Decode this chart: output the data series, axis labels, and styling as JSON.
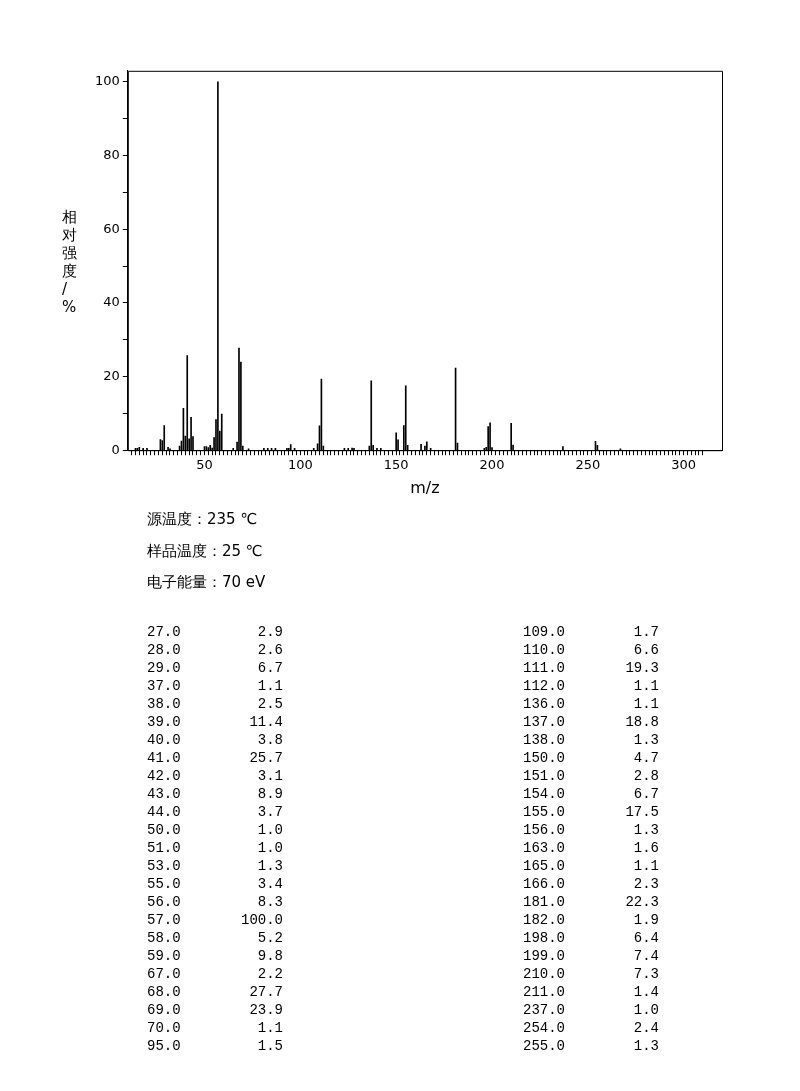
{
  "chart_data": [
    {
      "type": "bar",
      "xlabel": "m/z",
      "ylabel": "相对强度/%",
      "x": [
        14,
        15,
        16,
        18,
        20,
        26,
        27,
        28,
        29,
        31,
        32,
        37,
        38,
        39,
        40,
        41,
        42,
        43,
        44,
        50,
        51,
        52,
        53,
        54,
        55,
        56,
        57,
        58,
        59,
        65,
        67,
        68,
        69,
        70,
        73,
        81,
        83,
        85,
        87,
        93,
        94,
        95,
        97,
        107,
        109,
        110,
        111,
        112,
        123,
        125,
        127,
        128,
        136,
        137,
        138,
        140,
        142,
        150,
        151,
        154,
        155,
        156,
        163,
        165,
        166,
        168,
        181,
        182,
        196,
        197,
        198,
        199,
        200,
        210,
        211,
        237,
        254,
        255,
        267
      ],
      "values": [
        0.5,
        0.5,
        0.8,
        0.5,
        0.5,
        null,
        2.9,
        2.6,
        6.7,
        0.8,
        0.4,
        1.1,
        2.5,
        11.4,
        3.8,
        25.7,
        3.1,
        8.9,
        3.7,
        1.0,
        1.0,
        0.7,
        1.3,
        0.6,
        3.4,
        8.3,
        100,
        5.2,
        9.8,
        0.5,
        2.2,
        27.7,
        23.9,
        1.1,
        0.4,
        0.5,
        0.5,
        0.5,
        0.5,
        0.5,
        0.5,
        1.5,
        0.5,
        0.5,
        1.7,
        6.6,
        19.3,
        1.1,
        0.5,
        0.5,
        0.6,
        0.5,
        1.1,
        18.8,
        1.3,
        0.5,
        0.5,
        4.7,
        2.8,
        6.7,
        17.5,
        1.3,
        1.6,
        1.1,
        2.3,
        0.5,
        22.3,
        1.9,
        0.5,
        0.8,
        6.4,
        7.4,
        0.7,
        7.3,
        1.4,
        1.0,
        2.4,
        1.3,
        0.4
      ],
      "color": "#000000",
      "xlim": [
        10,
        320
      ],
      "xticks": [
        {
          "value": 12,
          "label": null
        },
        {
          "value": 14,
          "label": null
        },
        {
          "value": 16,
          "label": null
        },
        {
          "value": 18,
          "label": null
        },
        {
          "value": 20,
          "label": null
        },
        {
          "value": 22,
          "label": null
        },
        {
          "value": 24,
          "label": null
        },
        {
          "value": 26,
          "label": null
        },
        {
          "value": 28,
          "label": null
        },
        {
          "value": 30,
          "label": null
        },
        {
          "value": 32,
          "label": null
        },
        {
          "value": 34,
          "label": null
        },
        {
          "value": 36,
          "label": null
        },
        {
          "value": 38,
          "label": null
        },
        {
          "value": 40,
          "label": null
        },
        {
          "value": 42,
          "label": null
        },
        {
          "value": 44,
          "label": null
        },
        {
          "value": 46,
          "label": null
        },
        {
          "value": 48,
          "label": null
        },
        50,
        {
          "value": 52,
          "label": null
        },
        {
          "value": 54,
          "label": null
        },
        {
          "value": 56,
          "label": null
        },
        {
          "value": 58,
          "label": null
        },
        {
          "value": 60,
          "label": null
        },
        {
          "value": 62,
          "label": null
        },
        {
          "value": 64,
          "label": null
        },
        {
          "value": 66,
          "label": null
        },
        {
          "value": 68,
          "label": null
        },
        {
          "value": 70,
          "label": null
        },
        {
          "value": 72,
          "label": null
        },
        {
          "value": 74,
          "label": null
        },
        {
          "value": 76,
          "label": null
        },
        {
          "value": 78,
          "label": null
        },
        {
          "value": 80,
          "label": null
        },
        {
          "value": 82,
          "label": null
        },
        {
          "value": 84,
          "label": null
        },
        {
          "value": 86,
          "label": null
        },
        {
          "value": 88,
          "label": null
        },
        {
          "value": 90,
          "label": null
        },
        {
          "value": 92,
          "label": null
        },
        {
          "value": 94,
          "label": null
        },
        {
          "value": 96,
          "label": null
        },
        {
          "value": 98,
          "label": null
        },
        100,
        {
          "value": 102,
          "label": null
        },
        {
          "value": 104,
          "label": null
        },
        {
          "value": 106,
          "label": null
        },
        {
          "value": 108,
          "label": null
        },
        {
          "value": 110,
          "label": null
        },
        {
          "value": 112,
          "label": null
        },
        {
          "value": 114,
          "label": null
        },
        {
          "value": 116,
          "label": null
        },
        {
          "value": 118,
          "label": null
        },
        {
          "value": 120,
          "label": null
        },
        {
          "value": 122,
          "label": null
        },
        {
          "value": 124,
          "label": null
        },
        {
          "value": 126,
          "label": null
        },
        {
          "value": 128,
          "label": null
        },
        {
          "value": 130,
          "label": null
        },
        {
          "value": 132,
          "label": null
        },
        {
          "value": 134,
          "label": null
        },
        {
          "value": 136,
          "label": null
        },
        {
          "value": 138,
          "label": null
        },
        {
          "value": 140,
          "label": null
        },
        {
          "value": 142,
          "label": null
        },
        {
          "value": 144,
          "label": null
        },
        {
          "value": 146,
          "label": null
        },
        {
          "value": 148,
          "label": null
        },
        150,
        {
          "value": 152,
          "label": null
        },
        {
          "value": 154,
          "label": null
        },
        {
          "value": 156,
          "label": null
        },
        {
          "value": 158,
          "label": null
        },
        {
          "value": 160,
          "label": null
        },
        {
          "value": 162,
          "label": null
        },
        {
          "value": 164,
          "label": null
        },
        {
          "value": 166,
          "label": null
        },
        {
          "value": 168,
          "label": null
        },
        {
          "value": 170,
          "label": null
        },
        {
          "value": 172,
          "label": null
        },
        {
          "value": 174,
          "label": null
        },
        {
          "value": 176,
          "label": null
        },
        {
          "value": 178,
          "label": null
        },
        {
          "value": 180,
          "label": null
        },
        {
          "value": 182,
          "label": null
        },
        {
          "value": 184,
          "label": null
        },
        {
          "value": 186,
          "label": null
        },
        {
          "value": 188,
          "label": null
        },
        {
          "value": 190,
          "label": null
        },
        {
          "value": 192,
          "label": null
        },
        {
          "value": 194,
          "label": null
        },
        {
          "value": 196,
          "label": null
        },
        {
          "value": 198,
          "label": null
        },
        200,
        {
          "value": 202,
          "label": null
        },
        {
          "value": 204,
          "label": null
        },
        {
          "value": 206,
          "label": null
        },
        {
          "value": 208,
          "label": null
        },
        {
          "value": 210,
          "label": null
        },
        {
          "value": 212,
          "label": null
        },
        {
          "value": 214,
          "label": null
        },
        {
          "value": 216,
          "label": null
        },
        {
          "value": 218,
          "label": null
        },
        {
          "value": 220,
          "label": null
        },
        {
          "value": 222,
          "label": null
        },
        {
          "value": 224,
          "label": null
        },
        {
          "value": 226,
          "label": null
        },
        {
          "value": 228,
          "label": null
        },
        {
          "value": 230,
          "label": null
        },
        {
          "value": 232,
          "label": null
        },
        {
          "value": 234,
          "label": null
        },
        {
          "value": 236,
          "label": null
        },
        {
          "value": 238,
          "label": null
        },
        {
          "value": 240,
          "label": null
        },
        {
          "value": 242,
          "label": null
        },
        {
          "value": 244,
          "label": null
        },
        {
          "value": 246,
          "label": null
        },
        {
          "value": 248,
          "label": null
        },
        250,
        {
          "value": 252,
          "label": null
        },
        {
          "value": 254,
          "label": null
        },
        {
          "value": 256,
          "label": null
        },
        {
          "value": 258,
          "label": null
        },
        {
          "value": 260,
          "label": null
        },
        {
          "value": 262,
          "label": null
        },
        {
          "value": 264,
          "label": null
        },
        {
          "value": 266,
          "label": null
        },
        {
          "value": 268,
          "label": null
        },
        {
          "value": 270,
          "label": null
        },
        {
          "value": 272,
          "label": null
        },
        {
          "value": 274,
          "label": null
        },
        {
          "value": 276,
          "label": null
        },
        {
          "value": 278,
          "label": null
        },
        {
          "value": 280,
          "label": null
        },
        {
          "value": 282,
          "label": null
        },
        {
          "value": 284,
          "label": null
        },
        {
          "value": 286,
          "label": null
        },
        {
          "value": 288,
          "label": null
        },
        {
          "value": 290,
          "label": null
        },
        {
          "value": 292,
          "label": null
        },
        {
          "value": 294,
          "label": null
        },
        {
          "value": 296,
          "label": null
        },
        {
          "value": 298,
          "label": null
        },
        300,
        {
          "value": 302,
          "label": null
        },
        {
          "value": 304,
          "label": null
        },
        {
          "value": 306,
          "label": null
        },
        {
          "value": 308,
          "label": null
        },
        {
          "value": 310,
          "label": null
        }
      ],
      "ylim": [
        0,
        103
      ],
      "yticks": [
        0,
        {
          "value": 10,
          "label": null
        },
        20,
        {
          "value": 30,
          "label": null
        },
        40,
        {
          "value": 50,
          "label": null
        },
        60,
        {
          "value": 70,
          "label": null
        },
        80,
        {
          "value": 90,
          "label": null
        },
        100
      ],
      "grid": false,
      "legend": false,
      "annotations": [
        "源温度：235 ℃",
        "样品温度：25 ℃",
        "电子能量：70 eV"
      ]
    },
    {
      "type": "other",
      "annotations": [
        "27.0",
        "2.9",
        "28.0",
        "2.6",
        "29.0",
        "6.7",
        "37.0",
        "1.1",
        "38.0",
        "2.5",
        "39.0",
        "11.4",
        "40.0",
        "3.8",
        "41.0",
        "25.7",
        "42.0",
        "3.1",
        "43.0",
        "8.9",
        "44.0",
        "3.7",
        "50.0",
        "1.0",
        "51.0",
        "1.0",
        "53.0",
        "1.3",
        "55.0",
        "3.4",
        "56.0",
        "8.3",
        "57.0",
        "100.0",
        "58.0",
        "5.2",
        "59.0",
        "9.8",
        "67.0",
        "2.2",
        "68.0",
        "27.7",
        "69.0",
        "23.9",
        "70.0",
        "1.1",
        "95.0",
        "1.5",
        "109.0",
        "1.7",
        "110.0",
        "6.6",
        "111.0",
        "19.3",
        "112.0",
        "1.1",
        "136.0",
        "1.1",
        "137.0",
        "18.8",
        "138.0",
        "1.3",
        "150.0",
        "4.7",
        "151.0",
        "2.8",
        "154.0",
        "6.7",
        "155.0",
        "17.5",
        "156.0",
        "1.3",
        "163.0",
        "1.6",
        "165.0",
        "1.1",
        "166.0",
        "2.3",
        "181.0",
        "22.3",
        "182.0",
        "1.9",
        "198.0",
        "6.4",
        "199.0",
        "7.4",
        "210.0",
        "7.3",
        "211.0",
        "1.4",
        "237.0",
        "1.0",
        "254.0",
        "2.4",
        "255.0",
        "1.3"
      ]
    }
  ]
}
